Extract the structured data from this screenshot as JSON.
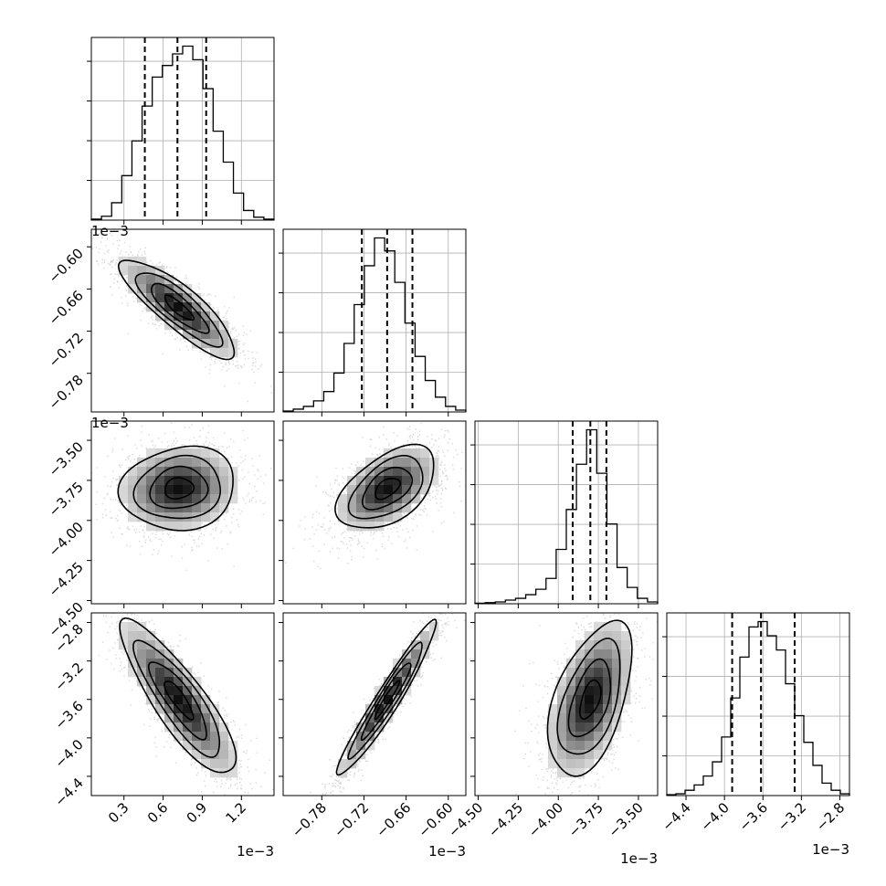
{
  "chart_data": {
    "type": "corner",
    "grid": true,
    "parameters": [
      {
        "range": [
          0.05,
          1.45
        ],
        "ticks": [
          0.3,
          0.6,
          0.9,
          1.2
        ],
        "tick_labels": [
          "0.3",
          "0.6",
          "0.9",
          "1.2"
        ],
        "scale_label": "1e−3",
        "quantiles": [
          0.46,
          0.71,
          0.93
        ]
      },
      {
        "range": [
          -0.835,
          -0.575
        ],
        "ticks": [
          -0.78,
          -0.72,
          -0.66,
          -0.6
        ],
        "tick_labels": [
          "−0.78",
          "−0.72",
          "−0.66",
          "−0.60"
        ],
        "scale_label": "1e−3",
        "quantiles": [
          -0.723,
          -0.687,
          -0.651
        ]
      },
      {
        "range": [
          -4.52,
          -3.38
        ],
        "ticks": [
          -4.5,
          -4.25,
          -4.0,
          -3.75,
          -3.5
        ],
        "tick_labels": [
          "−4.50",
          "−4.25",
          "−4.00",
          "−3.75",
          "−3.50"
        ],
        "scale_label": "1e−3",
        "quantiles": [
          -3.91,
          -3.8,
          -3.7
        ]
      },
      {
        "range": [
          -4.6,
          -2.7
        ],
        "ticks": [
          -4.4,
          -4.0,
          -3.6,
          -3.2,
          -2.8
        ],
        "tick_labels": [
          "−4.4",
          "−4.0",
          "−3.6",
          "−3.2",
          "−2.8"
        ],
        "scale_label": "1e−3",
        "quantiles": [
          -3.92,
          -3.62,
          -3.27
        ]
      }
    ],
    "histograms": [
      [
        0.5,
        2,
        9,
        23,
        41,
        59,
        74,
        80,
        86,
        90,
        83,
        68,
        46,
        30,
        14,
        5,
        1.5,
        0.5
      ],
      [
        0.5,
        1.5,
        3,
        6,
        11,
        21,
        37,
        58,
        79,
        94,
        87,
        70,
        48,
        30,
        17,
        8,
        3,
        1
      ],
      [
        0.3,
        0.6,
        1,
        2,
        3,
        5,
        8,
        14,
        30,
        52,
        77,
        96,
        72,
        44,
        20,
        9,
        3,
        1
      ],
      [
        0.5,
        1,
        3,
        6,
        11,
        19,
        33,
        55,
        78,
        95,
        98,
        90,
        82,
        63,
        45,
        30,
        17,
        7,
        3,
        1
      ]
    ],
    "correlations": [
      [
        1,
        -0.85,
        0.1,
        -0.85
      ],
      [
        -0.85,
        1,
        0.5,
        0.96
      ],
      [
        0.1,
        0.5,
        1,
        0.5
      ],
      [
        -0.85,
        0.96,
        0.5,
        1
      ]
    ],
    "means": [
      0.72,
      -0.687,
      -3.8,
      -3.6
    ],
    "sds": [
      0.22,
      0.035,
      0.13,
      0.4
    ]
  }
}
